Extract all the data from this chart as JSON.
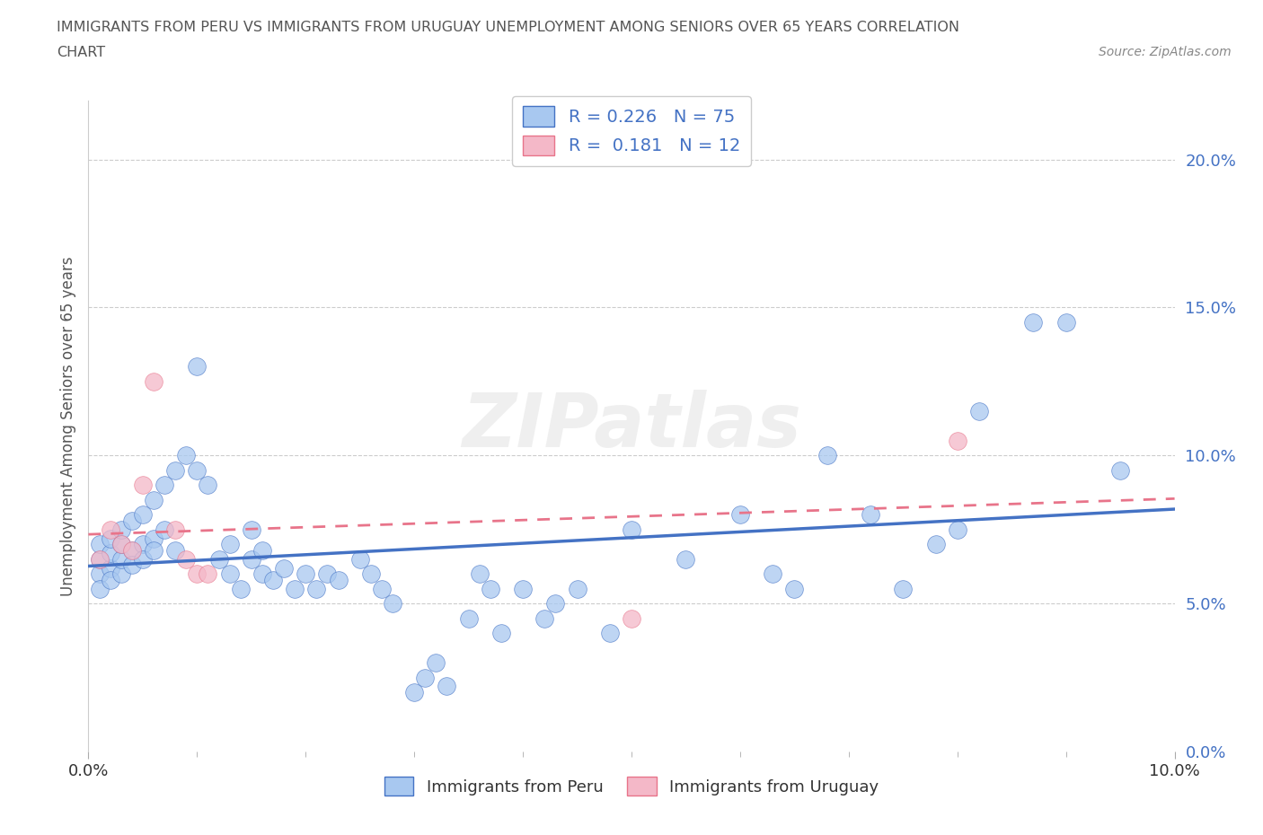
{
  "title_line1": "IMMIGRANTS FROM PERU VS IMMIGRANTS FROM URUGUAY UNEMPLOYMENT AMONG SENIORS OVER 65 YEARS CORRELATION",
  "title_line2": "CHART",
  "source": "Source: ZipAtlas.com",
  "ylabel": "Unemployment Among Seniors over 65 years",
  "peru_R": 0.226,
  "peru_N": 75,
  "uruguay_R": 0.181,
  "uruguay_N": 12,
  "peru_color": "#a8c8f0",
  "peru_line_color": "#4472c4",
  "uruguay_color": "#f4b8c8",
  "uruguay_line_color": "#e8748a",
  "legend_R_color": "#4472c4",
  "watermark": "ZIPatlas",
  "xlim": [
    0.0,
    0.1
  ],
  "ylim": [
    0.0,
    0.22
  ],
  "peru_x": [
    0.001,
    0.001,
    0.001,
    0.001,
    0.002,
    0.002,
    0.002,
    0.002,
    0.003,
    0.003,
    0.003,
    0.003,
    0.004,
    0.004,
    0.004,
    0.005,
    0.005,
    0.005,
    0.006,
    0.006,
    0.006,
    0.007,
    0.007,
    0.008,
    0.008,
    0.009,
    0.01,
    0.01,
    0.011,
    0.012,
    0.013,
    0.013,
    0.014,
    0.015,
    0.015,
    0.016,
    0.016,
    0.017,
    0.018,
    0.019,
    0.02,
    0.021,
    0.022,
    0.023,
    0.025,
    0.026,
    0.027,
    0.028,
    0.03,
    0.031,
    0.032,
    0.033,
    0.035,
    0.036,
    0.037,
    0.038,
    0.04,
    0.042,
    0.043,
    0.045,
    0.048,
    0.05,
    0.055,
    0.06,
    0.063,
    0.065,
    0.068,
    0.072,
    0.075,
    0.078,
    0.08,
    0.082,
    0.087,
    0.09,
    0.095
  ],
  "peru_y": [
    0.06,
    0.065,
    0.055,
    0.07,
    0.062,
    0.067,
    0.058,
    0.072,
    0.06,
    0.065,
    0.07,
    0.075,
    0.068,
    0.063,
    0.078,
    0.07,
    0.065,
    0.08,
    0.072,
    0.068,
    0.085,
    0.075,
    0.09,
    0.068,
    0.095,
    0.1,
    0.095,
    0.13,
    0.09,
    0.065,
    0.07,
    0.06,
    0.055,
    0.075,
    0.065,
    0.068,
    0.06,
    0.058,
    0.062,
    0.055,
    0.06,
    0.055,
    0.06,
    0.058,
    0.065,
    0.06,
    0.055,
    0.05,
    0.02,
    0.025,
    0.03,
    0.022,
    0.045,
    0.06,
    0.055,
    0.04,
    0.055,
    0.045,
    0.05,
    0.055,
    0.04,
    0.075,
    0.065,
    0.08,
    0.06,
    0.055,
    0.1,
    0.08,
    0.055,
    0.07,
    0.075,
    0.115,
    0.145,
    0.145,
    0.095
  ],
  "uruguay_x": [
    0.001,
    0.002,
    0.003,
    0.004,
    0.005,
    0.006,
    0.008,
    0.009,
    0.01,
    0.011,
    0.05,
    0.08
  ],
  "uruguay_y": [
    0.065,
    0.075,
    0.07,
    0.068,
    0.09,
    0.125,
    0.075,
    0.065,
    0.06,
    0.06,
    0.045,
    0.105
  ]
}
